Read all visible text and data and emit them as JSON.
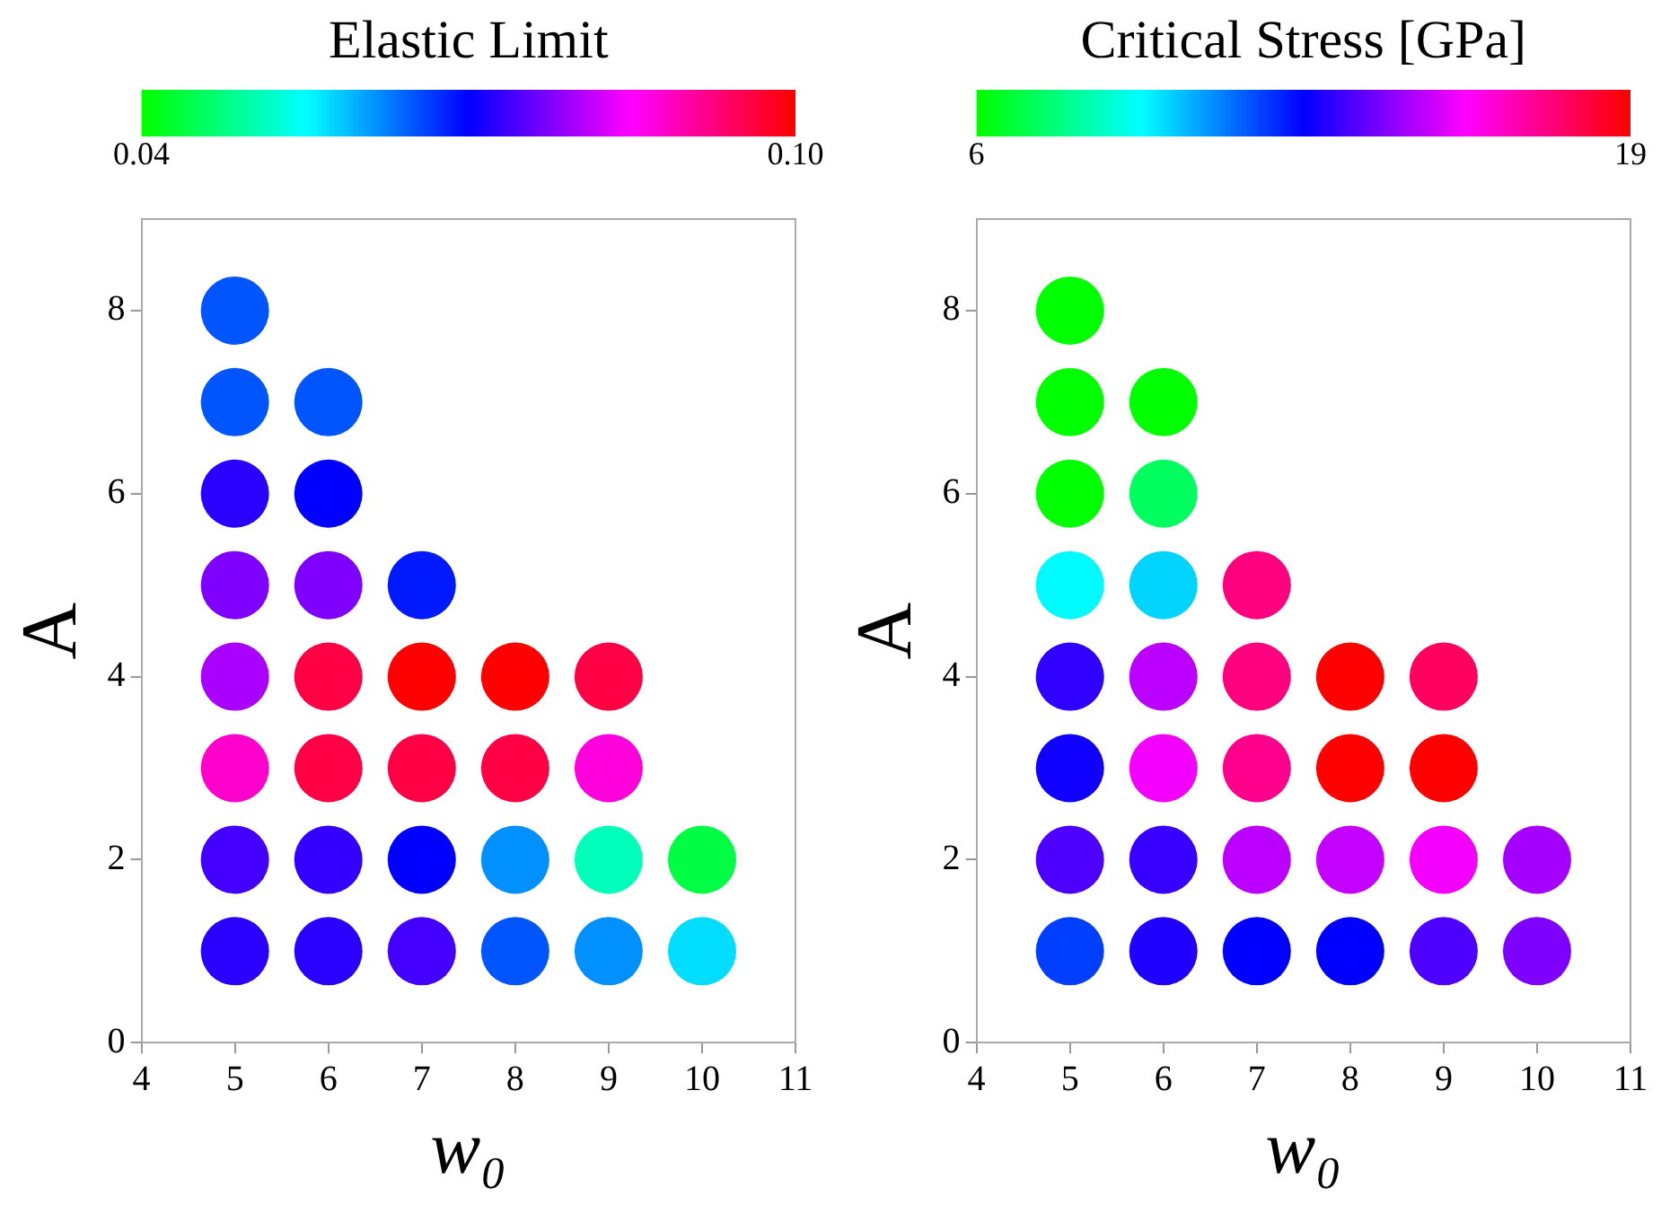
{
  "chart_data": [
    {
      "type": "scatter",
      "title": "Elastic Limit",
      "xlabel": "w₀",
      "ylabel": "A",
      "xlim": [
        4,
        11
      ],
      "xticks": [
        4,
        5,
        6,
        7,
        8,
        9,
        10,
        11
      ],
      "ylim": [
        0,
        9
      ],
      "yticks": [
        0,
        2,
        4,
        6,
        8
      ],
      "clim": [
        0.04,
        0.1
      ],
      "cticks": [
        {
          "value": 0.04,
          "label": "0.04"
        },
        {
          "value": 0.1,
          "label": "0.10"
        }
      ],
      "grid": false,
      "legend": false,
      "marker": "circle",
      "x": [
        5,
        5,
        6,
        5,
        6,
        5,
        6,
        7,
        5,
        6,
        7,
        8,
        9,
        5,
        6,
        7,
        8,
        9,
        5,
        6,
        7,
        8,
        9,
        10,
        5,
        6,
        7,
        8,
        9,
        10
      ],
      "values": [
        8,
        7,
        7,
        6,
        6,
        5,
        5,
        5,
        4,
        4,
        4,
        4,
        4,
        3,
        3,
        3,
        3,
        3,
        2,
        2,
        2,
        2,
        2,
        2,
        1,
        1,
        1,
        1,
        1,
        1
      ],
      "cvalues": [
        0.065,
        0.065,
        0.065,
        0.0725,
        0.07,
        0.0775,
        0.0775,
        0.0685,
        0.08,
        0.096,
        0.1,
        0.1,
        0.096,
        0.088,
        0.096,
        0.096,
        0.096,
        0.087,
        0.074,
        0.073,
        0.07,
        0.0615,
        0.051,
        0.044,
        0.0725,
        0.0725,
        0.074,
        0.065,
        0.0615,
        0.057
      ]
    },
    {
      "type": "scatter",
      "title": "Critical Stress [GPa]",
      "xlabel": "w₀",
      "ylabel": "A",
      "xlim": [
        4,
        11
      ],
      "xticks": [
        4,
        5,
        6,
        7,
        8,
        9,
        10,
        11
      ],
      "ylim": [
        0,
        9
      ],
      "yticks": [
        0,
        2,
        4,
        6,
        8
      ],
      "clim": [
        6,
        19
      ],
      "cticks": [
        6,
        19
      ],
      "grid": false,
      "legend": false,
      "marker": "circle",
      "x": [
        5,
        5,
        6,
        5,
        6,
        5,
        6,
        7,
        5,
        6,
        7,
        8,
        9,
        5,
        6,
        7,
        8,
        9,
        5,
        6,
        7,
        8,
        9,
        10,
        5,
        6,
        7,
        8,
        9,
        10
      ],
      "values": [
        8,
        7,
        7,
        6,
        6,
        5,
        5,
        5,
        4,
        4,
        4,
        4,
        4,
        3,
        3,
        3,
        3,
        3,
        2,
        2,
        2,
        2,
        2,
        2,
        1,
        1,
        1,
        1,
        1,
        1
      ],
      "cvalues": [
        6,
        6,
        6,
        6.0,
        7.2,
        9.3,
        9.8,
        17.4,
        13.1,
        14.9,
        17.4,
        19,
        17.8,
        12.7,
        15.6,
        17.2,
        19,
        19,
        13.5,
        13.2,
        14.9,
        15.0,
        15.6,
        14.6,
        11.7,
        12.9,
        12.5,
        12.5,
        13.5,
        14.1
      ]
    }
  ]
}
